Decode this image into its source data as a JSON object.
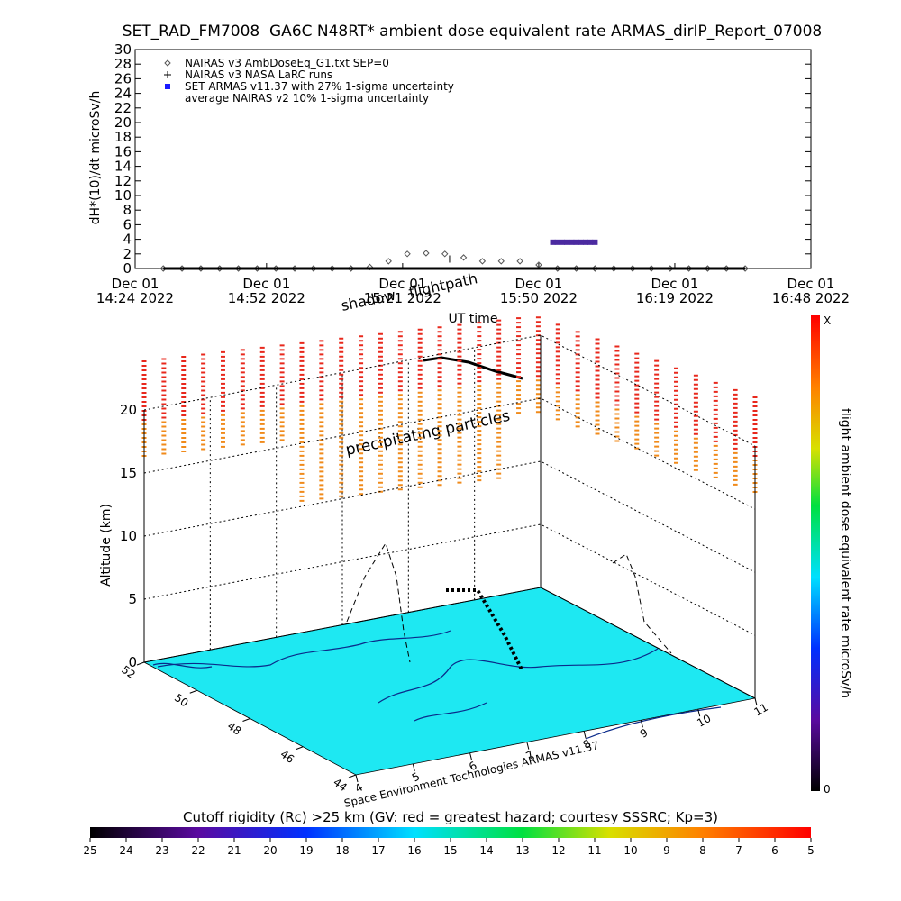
{
  "chart_data": [
    {
      "type": "line",
      "title": "SET_RAD_FM7008  GA6C N48RT* ambient dose equivalent rate ARMAS_dirIP_Report_07008",
      "ylabel": "dH*(10)/dt microSv/h",
      "xlabel": "UT time",
      "xlim": [
        "2022-12-01T14:24",
        "2022-12-01T16:48"
      ],
      "xticks": [
        {
          "value": "2022-12-01T14:24",
          "label": [
            "Dec 01",
            "14:24 2022"
          ]
        },
        {
          "value": "2022-12-01T14:52",
          "label": [
            "Dec 01",
            "14:52 2022"
          ]
        },
        {
          "value": "2022-12-01T15:21",
          "label": [
            "Dec 01",
            "15:21 2022"
          ]
        },
        {
          "value": "2022-12-01T15:50",
          "label": [
            "Dec 01",
            "15:50 2022"
          ]
        },
        {
          "value": "2022-12-01T16:19",
          "label": [
            "Dec 01",
            "16:19 2022"
          ]
        },
        {
          "value": "2022-12-01T16:48",
          "label": [
            "Dec 01",
            "16:48 2022"
          ]
        }
      ],
      "ylim": [
        0,
        30
      ],
      "yticks": [
        0,
        2,
        4,
        6,
        8,
        10,
        12,
        14,
        16,
        18,
        20,
        22,
        24,
        26,
        28,
        30
      ],
      "series": [
        {
          "name": "NAIRAS v3 AmbDoseEq_G1.txt SEP=0",
          "color": "#555555",
          "marker": "diamond",
          "x": [
            "2022-12-01T14:30",
            "2022-12-01T14:34",
            "2022-12-01T14:38",
            "2022-12-01T14:42",
            "2022-12-01T14:46",
            "2022-12-01T14:50",
            "2022-12-01T14:54",
            "2022-12-01T14:58",
            "2022-12-01T15:02",
            "2022-12-01T15:06",
            "2022-12-01T15:10",
            "2022-12-01T15:14",
            "2022-12-01T15:18",
            "2022-12-01T15:22",
            "2022-12-01T15:26",
            "2022-12-01T15:30",
            "2022-12-01T15:34",
            "2022-12-01T15:38",
            "2022-12-01T15:42",
            "2022-12-01T15:46",
            "2022-12-01T15:50",
            "2022-12-01T15:54",
            "2022-12-01T15:58",
            "2022-12-01T16:02",
            "2022-12-01T16:06",
            "2022-12-01T16:10",
            "2022-12-01T16:14",
            "2022-12-01T16:18",
            "2022-12-01T16:22",
            "2022-12-01T16:26",
            "2022-12-01T16:30",
            "2022-12-01T16:34"
          ],
          "values": [
            0,
            0,
            0,
            0,
            0,
            0,
            0,
            0,
            0,
            0,
            0,
            0.2,
            1.0,
            2.0,
            2.1,
            2.0,
            1.5,
            1.0,
            1.0,
            1.0,
            0.5,
            0,
            0,
            0,
            0,
            0,
            0,
            0,
            0,
            0,
            0,
            0
          ]
        },
        {
          "name": "NAIRAS v3 NASA LaRC runs",
          "color": "#000000",
          "marker": "plus",
          "x": [
            "2022-12-01T15:31"
          ],
          "values": [
            1.3
          ]
        },
        {
          "name": "SET ARMAS v11.37 with 27% 1-sigma uncertainty",
          "color": "#4b2aa0",
          "marker": "dot",
          "x": [
            "2022-12-01T15:53",
            "2022-12-01T15:54",
            "2022-12-01T15:55",
            "2022-12-01T15:56",
            "2022-12-01T15:57",
            "2022-12-01T15:58",
            "2022-12-01T15:59",
            "2022-12-01T16:00",
            "2022-12-01T16:01",
            "2022-12-01T16:02"
          ],
          "values": [
            3.6,
            3.6,
            3.6,
            3.6,
            3.6,
            3.6,
            3.6,
            3.6,
            3.6,
            3.6
          ]
        },
        {
          "name": "average NAIRAS v2 10% 1-sigma uncertainty",
          "color": "#000000",
          "marker": "none",
          "x": [
            "2022-12-01T14:30",
            "2022-12-01T16:34"
          ],
          "values": [
            0,
            0
          ]
        }
      ]
    },
    {
      "type": "scatter3d",
      "zlabel": "Altitude (km)",
      "zlim": [
        0,
        20
      ],
      "zticks": [
        0,
        5,
        10,
        15,
        20
      ],
      "ylim": [
        52,
        44
      ],
      "yticks": [
        52,
        50,
        48,
        46,
        44
      ],
      "xlim": [
        4,
        11
      ],
      "xticks": [
        4,
        5,
        6,
        7,
        8,
        9,
        10,
        11
      ],
      "annotations": [
        "shadow",
        "flightpath",
        "precipitating particles",
        "Space Environment Technologies ARMAS v11.37"
      ],
      "colorbar_label": "flight ambient dose equivalent rate microSv/h",
      "colorbar_ends": [
        "X",
        "0"
      ]
    },
    {
      "type": "colorbar",
      "title": "Cutoff rigidity (Rc) >25 km (GV: red = greatest hazard; courtesy SSSRC; Kp=3)",
      "xlim": [
        25,
        5
      ],
      "xticks": [
        25,
        24,
        23,
        22,
        21,
        20,
        19,
        18,
        17,
        16,
        15,
        14,
        13,
        12,
        11,
        10,
        9,
        8,
        7,
        6,
        5
      ]
    }
  ]
}
